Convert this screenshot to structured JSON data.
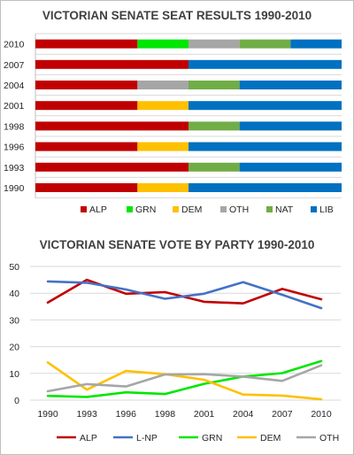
{
  "chart_data": [
    {
      "type": "bar",
      "orientation": "horizontal",
      "stacked": true,
      "title": "VICTORIAN SENATE SEAT RESULTS 1990-2010",
      "categories": [
        "2010",
        "2007",
        "2004",
        "2001",
        "1998",
        "1996",
        "1993",
        "1990"
      ],
      "series": [
        {
          "name": "ALP",
          "color": "#c00000",
          "values": [
            2,
            3,
            2,
            2,
            3,
            2,
            3,
            2
          ]
        },
        {
          "name": "GRN",
          "color": "#00e600",
          "values": [
            1,
            0,
            0,
            0,
            0,
            0,
            0,
            0
          ]
        },
        {
          "name": "DEM",
          "color": "#ffc000",
          "values": [
            0,
            0,
            0,
            1,
            0,
            1,
            0,
            1
          ]
        },
        {
          "name": "OTH",
          "color": "#a6a6a6",
          "values": [
            1,
            0,
            1,
            0,
            0,
            0,
            0,
            0
          ]
        },
        {
          "name": "NAT",
          "color": "#70ad47",
          "values": [
            1,
            0,
            1,
            0,
            1,
            0,
            1,
            0
          ]
        },
        {
          "name": "LIB",
          "color": "#0070c0",
          "values": [
            1,
            3,
            2,
            3,
            2,
            3,
            2,
            3
          ]
        }
      ],
      "total_seats": 6,
      "legend_position": "bottom",
      "grid": true
    },
    {
      "type": "line",
      "title": "VICTORIAN SENATE VOTE BY PARTY 1990-2010",
      "x": [
        "1990",
        "1993",
        "1996",
        "1998",
        "2001",
        "2004",
        "2007",
        "2010"
      ],
      "series": [
        {
          "name": "ALP",
          "color": "#c00000",
          "values": [
            36.5,
            45,
            39.8,
            40.4,
            36.8,
            36.2,
            41.6,
            37.7
          ]
        },
        {
          "name": "L-NP",
          "color": "#4472c4",
          "values": [
            44.4,
            43.9,
            41.4,
            37.9,
            39.8,
            44.1,
            39.4,
            34.4
          ]
        },
        {
          "name": "GRN",
          "color": "#00e600",
          "values": [
            1.6,
            1.2,
            2.9,
            2.3,
            6.1,
            8.8,
            10.1,
            14.6
          ]
        },
        {
          "name": "DEM",
          "color": "#ffc000",
          "values": [
            14.1,
            3.9,
            10.9,
            9.7,
            7.6,
            2.1,
            1.7,
            0.3
          ]
        },
        {
          "name": "OTH",
          "color": "#a6a6a6",
          "values": [
            3.3,
            6.0,
            5.1,
            9.6,
            9.7,
            8.8,
            7.2,
            13.0
          ]
        }
      ],
      "yticks": [
        "0",
        "10",
        "20",
        "30",
        "40",
        "50"
      ],
      "ylim": [
        0,
        50
      ],
      "legend_position": "bottom",
      "grid": true
    }
  ]
}
